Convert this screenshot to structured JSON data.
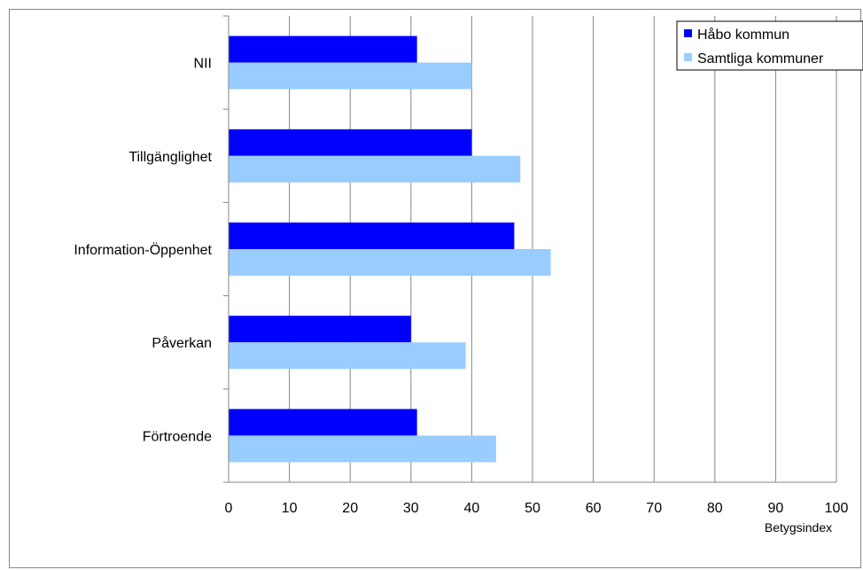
{
  "chart_data": {
    "type": "bar",
    "orientation": "horizontal",
    "categories": [
      "NII",
      "Tillgänglighet",
      "Information-Öppenhet",
      "Påverkan",
      "Förtroende"
    ],
    "series": [
      {
        "name": "Håbo kommun",
        "color": "#0000ff",
        "values": [
          31,
          40,
          47,
          30,
          31
        ]
      },
      {
        "name": "Samtliga kommuner",
        "color": "#99ccff",
        "values": [
          40,
          48,
          53,
          39,
          44
        ]
      }
    ],
    "xlim": [
      0,
      100
    ],
    "xticks": [
      "0",
      "10",
      "20",
      "30",
      "40",
      "50",
      "60",
      "70",
      "80",
      "90",
      "100"
    ],
    "xlabel": "Betygsindex",
    "ylabel": "",
    "title": "",
    "grid": true,
    "legend_position": "top-right"
  }
}
